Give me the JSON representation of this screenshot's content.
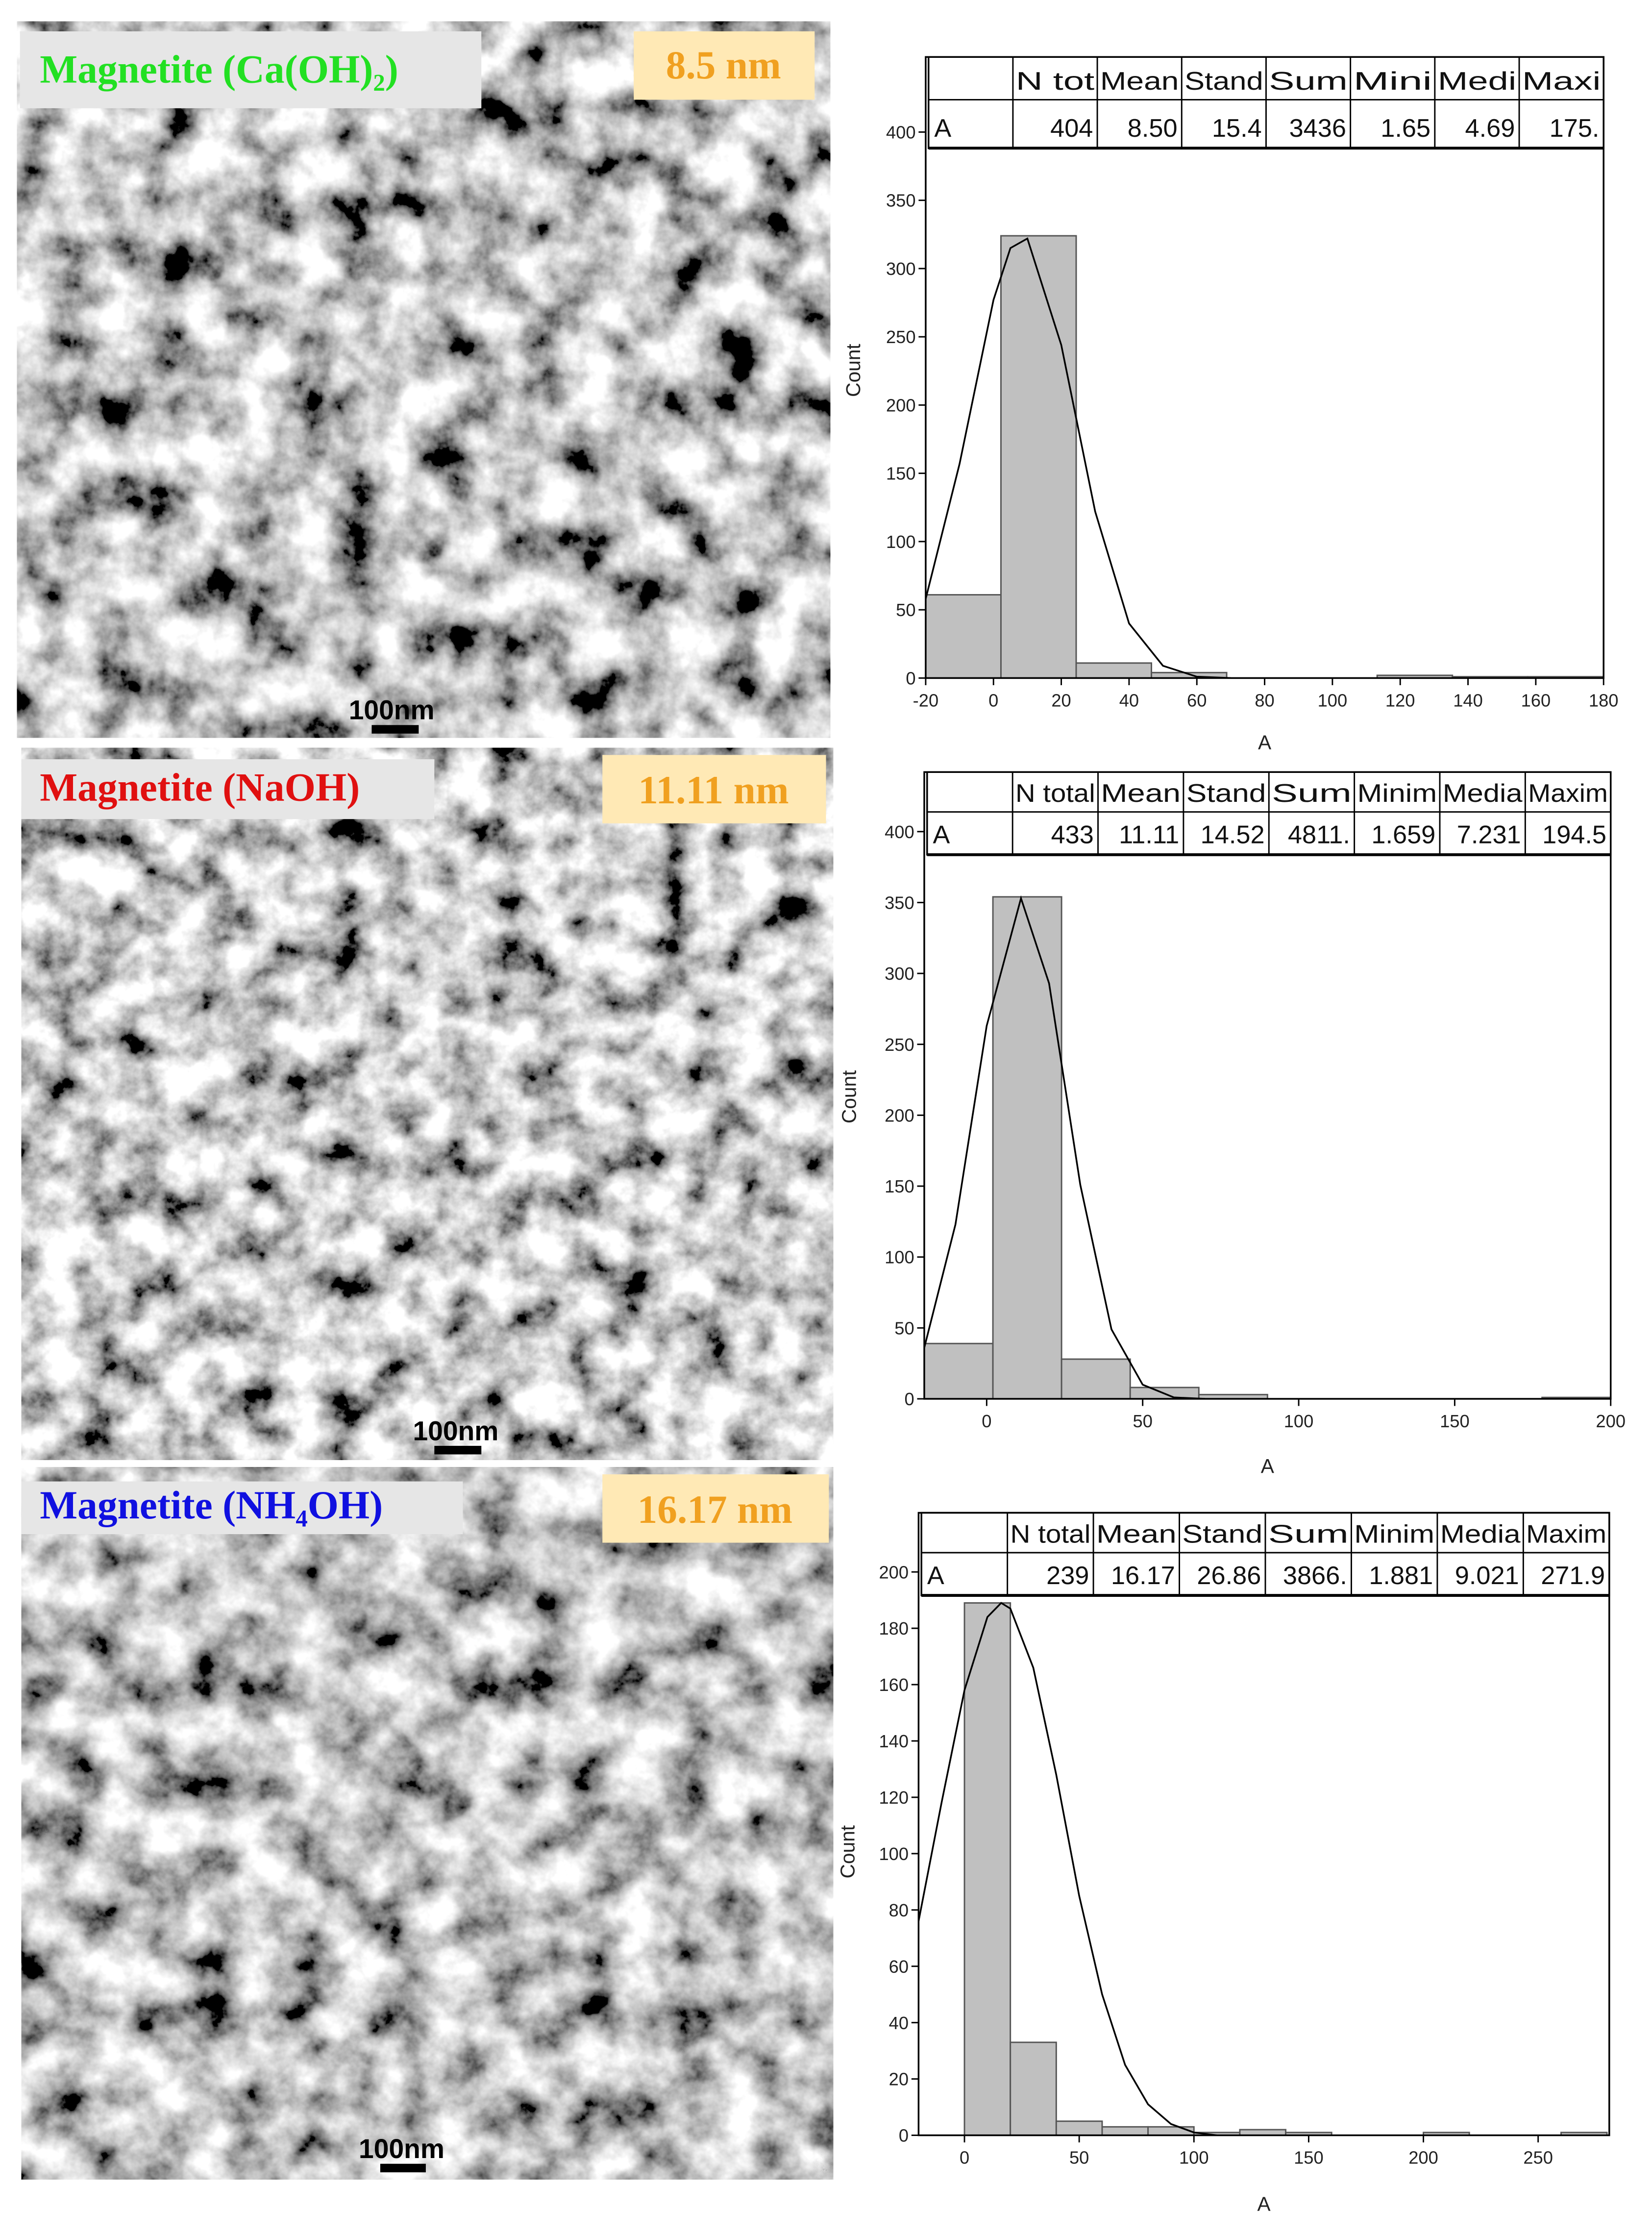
{
  "panels": [
    {
      "label": "Magnetite (Ca(OH)₂)",
      "size": "8.5 nm",
      "scale_bar": "100nm"
    },
    {
      "label": "Magnetite (NaOH)",
      "size": "11.11 nm",
      "scale_bar": "100nm"
    },
    {
      "label": "Magnetite (NH₄OH)",
      "size": "16.17 nm",
      "scale_bar": "100nm"
    }
  ],
  "chart_data": [
    {
      "type": "histogram",
      "xlabel": "A",
      "ylabel": "Count",
      "color": "#c0c0c0",
      "bins": [
        -20,
        2.2,
        24.4,
        46.6,
        68.8,
        91,
        113.2,
        135.4,
        157.6,
        179.8
      ],
      "values": [
        61,
        324,
        11,
        4,
        0,
        0,
        2,
        1,
        1
      ],
      "fit": {
        "x": [
          -20,
          -10,
          0,
          5,
          10,
          20,
          30,
          40,
          50,
          60,
          70
        ],
        "values": [
          58,
          157,
          277,
          315,
          322,
          244,
          122,
          40,
          9,
          1,
          0
        ]
      },
      "xlim": [
        -20,
        180
      ],
      "xticks": [
        -20,
        0,
        20,
        40,
        60,
        80,
        100,
        120,
        140,
        160,
        180
      ],
      "ylim": [
        0,
        455
      ],
      "yticks": [
        0,
        50,
        100,
        150,
        200,
        250,
        300,
        350,
        400
      ],
      "table": {
        "columns": [
          "N tot",
          "Mean",
          "Stand",
          "Sum",
          "Mini",
          "Medi",
          "Maxi"
        ],
        "row_label": "A",
        "row": [
          "404",
          "8.50",
          "15.4",
          "3436",
          "1.65",
          "4.69",
          "175."
        ]
      }
    },
    {
      "type": "histogram",
      "xlabel": "A",
      "ylabel": "Count",
      "color": "#c0c0c0",
      "bins": [
        -20,
        2,
        24,
        46,
        68,
        90,
        112,
        134,
        156,
        178,
        200
      ],
      "values": [
        39,
        354,
        28,
        8,
        3,
        0,
        0,
        0,
        0,
        1
      ],
      "fit": {
        "x": [
          -20,
          -10,
          0,
          11,
          20,
          30,
          40,
          50,
          60,
          70
        ],
        "values": [
          36,
          123,
          263,
          353,
          293,
          151,
          49,
          10,
          1,
          0
        ]
      },
      "xlim": [
        -20,
        200
      ],
      "xticks": [
        0,
        50,
        100,
        150,
        200
      ],
      "ylim": [
        0,
        442
      ],
      "yticks": [
        0,
        50,
        100,
        150,
        200,
        250,
        300,
        350,
        400
      ],
      "table": {
        "columns": [
          "N total",
          "Mean",
          "Stand",
          "Sum",
          "Minim",
          "Media",
          "Maxim"
        ],
        "row_label": "A",
        "row": [
          "433",
          "11.11",
          "14.52",
          "4811.",
          "1.659",
          "7.231",
          "194.5"
        ]
      }
    },
    {
      "type": "histogram",
      "xlabel": "A",
      "ylabel": "Count",
      "color": "#c0c0c0",
      "bins": [
        0,
        20,
        40,
        60,
        80,
        100,
        120,
        140,
        160,
        180,
        200,
        220,
        240,
        260,
        280
      ],
      "values": [
        189,
        33,
        5,
        3,
        3,
        1,
        2,
        1,
        0,
        0,
        1,
        0,
        0,
        1
      ],
      "fit": {
        "x": [
          -20,
          -10,
          0,
          10,
          16,
          20,
          30,
          40,
          50,
          60,
          70,
          80,
          90,
          100,
          110
        ],
        "values": [
          76,
          118,
          158,
          184,
          189,
          187,
          166,
          128,
          85,
          50,
          25,
          11,
          4,
          1,
          0
        ]
      },
      "xlim": [
        -20,
        281
      ],
      "xticks": [
        0,
        50,
        100,
        150,
        200,
        250
      ],
      "ylim": [
        0,
        221
      ],
      "yticks": [
        0,
        20,
        40,
        60,
        80,
        100,
        120,
        140,
        160,
        180,
        200
      ],
      "table": {
        "columns": [
          "N total",
          "Mean",
          "Stand",
          "Sum",
          "Minim",
          "Media",
          "Maxim"
        ],
        "row_label": "A",
        "row": [
          "239",
          "16.17",
          "26.86",
          "3866.",
          "1.881",
          "9.021",
          "271.9"
        ]
      }
    }
  ]
}
